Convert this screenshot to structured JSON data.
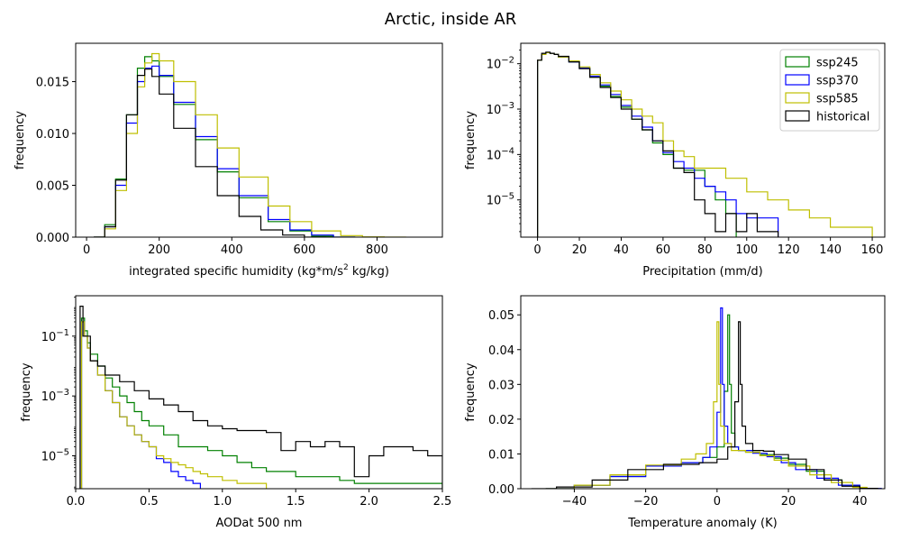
{
  "figure": {
    "title": "Arctic, inside AR"
  },
  "colors": {
    "ssp245": "#008000",
    "ssp370": "#0000ff",
    "ssp585": "#bfbf00",
    "historical": "#000000"
  },
  "chart_data": [
    {
      "id": "ivt",
      "type": "histogram-step",
      "xlabel": "integrated specific humidity (kg*m/s² kg/kg)",
      "xlabel_parts": {
        "pre": "integrated specific humidity (kg*m/s",
        "sup": "2",
        "post": " kg/kg)"
      },
      "ylabel": "frequency",
      "xlim": [
        -30,
        980
      ],
      "ylim": [
        0,
        0.0187
      ],
      "yscale": "linear",
      "xticks": [
        0,
        200,
        400,
        600,
        800
      ],
      "xtick_labels": [
        "0",
        "200",
        "400",
        "600",
        "800"
      ],
      "yticks": [
        0,
        0.005,
        0.01,
        0.015
      ],
      "ytick_labels": [
        "0.000",
        "0.005",
        "0.010",
        "0.015"
      ],
      "series": [
        {
          "name": "ssp245",
          "color": "#008000",
          "x": [
            20,
            50,
            80,
            110,
            140,
            160,
            180,
            200,
            240,
            300,
            360,
            420,
            500,
            560,
            620,
            680
          ],
          "y": [
            0,
            0.0012,
            0.0056,
            0.0118,
            0.0163,
            0.0174,
            0.017,
            0.0155,
            0.0128,
            0.0094,
            0.0063,
            0.0038,
            0.0015,
            0.0006,
            0.0001,
            0
          ]
        },
        {
          "name": "ssp370",
          "color": "#0000ff",
          "x": [
            20,
            50,
            80,
            110,
            140,
            160,
            180,
            200,
            240,
            300,
            360,
            420,
            500,
            560,
            620,
            680
          ],
          "y": [
            0,
            0.001,
            0.005,
            0.011,
            0.015,
            0.0163,
            0.0165,
            0.0156,
            0.013,
            0.0097,
            0.0066,
            0.004,
            0.0017,
            0.0007,
            0.0002,
            0
          ]
        },
        {
          "name": "ssp585",
          "color": "#bfbf00",
          "x": [
            20,
            50,
            80,
            110,
            140,
            160,
            180,
            200,
            240,
            300,
            360,
            420,
            500,
            560,
            620,
            700,
            760,
            820
          ],
          "y": [
            0,
            0.0008,
            0.0045,
            0.01,
            0.0145,
            0.0168,
            0.0177,
            0.017,
            0.015,
            0.0118,
            0.0086,
            0.0058,
            0.003,
            0.0015,
            0.0006,
            0.00015,
            3e-05,
            0
          ]
        },
        {
          "name": "historical",
          "color": "#000000",
          "x": [
            20,
            50,
            80,
            110,
            140,
            160,
            180,
            200,
            240,
            300,
            360,
            420,
            480,
            540,
            600
          ],
          "y": [
            0,
            0.001,
            0.0055,
            0.0118,
            0.0156,
            0.0162,
            0.0155,
            0.0138,
            0.0105,
            0.0068,
            0.004,
            0.002,
            0.0007,
            0.0002,
            0
          ]
        }
      ]
    },
    {
      "id": "precip",
      "type": "histogram-step",
      "xlabel": "Precipitation (mm/d)",
      "ylabel": "frequency",
      "xlim": [
        -8,
        166
      ],
      "ylim_log": [
        -5.82,
        -1.55
      ],
      "yscale": "log",
      "xticks": [
        0,
        20,
        40,
        60,
        80,
        100,
        120,
        140,
        160
      ],
      "xtick_labels": [
        "0",
        "20",
        "40",
        "60",
        "80",
        "100",
        "120",
        "140",
        "160"
      ],
      "yticks_exp": [
        -5,
        -4,
        -3,
        -2
      ],
      "legend": {
        "position": "upper right",
        "entries": [
          "ssp245",
          "ssp370",
          "ssp585",
          "historical"
        ]
      },
      "series": [
        {
          "name": "ssp245",
          "color": "#008000",
          "x": [
            0,
            2,
            4,
            6,
            8,
            10,
            15,
            20,
            25,
            30,
            35,
            40,
            45,
            50,
            55,
            60,
            65,
            70,
            75,
            80,
            85,
            90
          ],
          "y": [
            0.012,
            0.016,
            0.0175,
            0.017,
            0.016,
            0.014,
            0.011,
            0.008,
            0.0052,
            0.0032,
            0.0019,
            0.0011,
            0.0006,
            0.00035,
            0.00018,
            0.0001,
            5e-05,
            4.5e-05,
            4.5e-05,
            2e-05,
            1e-05,
            5e-06
          ]
        },
        {
          "name": "ssp370",
          "color": "#0000ff",
          "x": [
            0,
            2,
            4,
            6,
            8,
            10,
            15,
            20,
            25,
            30,
            35,
            40,
            45,
            50,
            55,
            60,
            65,
            70,
            75,
            80,
            85,
            90,
            95,
            100,
            105,
            110
          ],
          "y": [
            0.012,
            0.016,
            0.0175,
            0.017,
            0.016,
            0.014,
            0.011,
            0.008,
            0.0053,
            0.0034,
            0.0021,
            0.0012,
            0.0007,
            0.0004,
            0.0002,
            0.00011,
            7e-05,
            5e-05,
            3e-05,
            2e-05,
            1.5e-05,
            1e-05,
            5e-06,
            4e-06,
            4e-06,
            4e-06
          ]
        },
        {
          "name": "ssp585",
          "color": "#bfbf00",
          "x": [
            0,
            2,
            4,
            6,
            8,
            10,
            15,
            20,
            25,
            30,
            35,
            40,
            45,
            50,
            55,
            60,
            65,
            70,
            75,
            80,
            90,
            100,
            110,
            120,
            130,
            140,
            150
          ],
          "y": [
            0.012,
            0.016,
            0.0175,
            0.017,
            0.016,
            0.014,
            0.0115,
            0.0085,
            0.0058,
            0.0038,
            0.0025,
            0.0016,
            0.001,
            0.0007,
            0.0005,
            0.0002,
            0.00012,
            9e-05,
            5e-05,
            5e-05,
            3e-05,
            1.5e-05,
            1e-05,
            6e-06,
            4e-06,
            2.5e-06,
            2.5e-06
          ]
        },
        {
          "name": "historical",
          "color": "#000000",
          "x": [
            0,
            2,
            4,
            6,
            8,
            10,
            15,
            20,
            25,
            30,
            35,
            40,
            45,
            50,
            55,
            60,
            65,
            70,
            75,
            80,
            85,
            90,
            95,
            100,
            105,
            110
          ],
          "y": [
            0.012,
            0.017,
            0.018,
            0.017,
            0.016,
            0.0145,
            0.011,
            0.0078,
            0.005,
            0.003,
            0.0018,
            0.001,
            0.0006,
            0.00035,
            0.0002,
            0.00012,
            5e-05,
            4e-05,
            1e-05,
            5e-06,
            2e-06,
            5e-06,
            2e-06,
            5e-06,
            2e-06,
            2e-06
          ]
        }
      ]
    },
    {
      "id": "aod",
      "type": "histogram-step",
      "xlabel": "AODat 500 nm",
      "ylabel": "frequency",
      "xlim": [
        0,
        2.5
      ],
      "ylim_log": [
        -6.1,
        0.35
      ],
      "yscale": "log",
      "xticks": [
        0,
        0.5,
        1.0,
        1.5,
        2.0,
        2.5
      ],
      "xtick_labels": [
        "0.0",
        "0.5",
        "1.0",
        "1.5",
        "2.0",
        "2.5"
      ],
      "yticks_exp": [
        -5,
        -3,
        -1
      ],
      "series": [
        {
          "name": "ssp245",
          "color": "#008000",
          "x": [
            0.04,
            0.06,
            0.08,
            0.1,
            0.15,
            0.2,
            0.25,
            0.3,
            0.35,
            0.4,
            0.45,
            0.5,
            0.6,
            0.7,
            0.8,
            0.9,
            1.0,
            1.1,
            1.2,
            1.3,
            1.4,
            1.5,
            1.6,
            1.7,
            1.8,
            1.9,
            2.0,
            2.1,
            2.2,
            2.3,
            2.4,
            2.5
          ],
          "y": [
            0.4,
            0.15,
            0.06,
            0.025,
            0.01,
            0.004,
            0.002,
            0.001,
            0.0006,
            0.0003,
            0.00015,
            0.0001,
            5e-05,
            2e-05,
            2e-05,
            1.5e-05,
            1e-05,
            6e-06,
            4e-06,
            3e-06,
            3e-06,
            2e-06,
            2e-06,
            2e-06,
            1.5e-06,
            1.2e-06,
            1.2e-06,
            1.2e-06,
            1.2e-06,
            1.2e-06,
            1.2e-06,
            1.2e-06
          ]
        },
        {
          "name": "ssp370",
          "color": "#0000ff",
          "x": [
            0.04,
            0.06,
            0.08,
            0.1,
            0.15,
            0.2,
            0.25,
            0.3,
            0.35,
            0.4,
            0.45,
            0.5,
            0.55,
            0.6,
            0.65,
            0.7,
            0.75,
            0.8
          ],
          "y": [
            0.3,
            0.1,
            0.04,
            0.015,
            0.005,
            0.0015,
            0.0006,
            0.0002,
            0.0001,
            5e-05,
            3e-05,
            2e-05,
            8e-06,
            6e-06,
            3e-06,
            2e-06,
            1.5e-06,
            1.2e-06
          ]
        },
        {
          "name": "ssp585",
          "color": "#bfbf00",
          "x": [
            0.04,
            0.06,
            0.08,
            0.1,
            0.15,
            0.2,
            0.25,
            0.3,
            0.35,
            0.4,
            0.45,
            0.5,
            0.55,
            0.6,
            0.65,
            0.7,
            0.75,
            0.8,
            0.85,
            0.9,
            1.0,
            1.1,
            1.2
          ],
          "y": [
            0.3,
            0.1,
            0.04,
            0.015,
            0.005,
            0.0015,
            0.0006,
            0.0002,
            0.0001,
            5e-05,
            3e-05,
            2e-05,
            1e-05,
            8e-06,
            6e-06,
            5e-06,
            4e-06,
            3e-06,
            2.5e-06,
            2e-06,
            1.5e-06,
            1.2e-06,
            1.2e-06
          ]
        },
        {
          "name": "historical",
          "color": "#000000",
          "x": [
            0.03,
            0.05,
            0.1,
            0.15,
            0.2,
            0.3,
            0.4,
            0.5,
            0.6,
            0.7,
            0.8,
            0.9,
            1.0,
            1.1,
            1.2,
            1.3,
            1.4,
            1.5,
            1.6,
            1.7,
            1.8,
            1.9,
            2.0,
            2.1,
            2.2,
            2.3,
            2.4,
            2.5
          ],
          "y": [
            1.0,
            0.1,
            0.015,
            0.01,
            0.005,
            0.003,
            0.0015,
            0.0008,
            0.0005,
            0.0003,
            0.00015,
            0.0001,
            8e-05,
            7e-05,
            7e-05,
            6e-05,
            1.5e-05,
            3e-05,
            2e-05,
            3e-05,
            2e-05,
            2e-06,
            1e-05,
            2e-05,
            2e-05,
            1.5e-05,
            1e-05,
            1e-05
          ]
        }
      ]
    },
    {
      "id": "tanom",
      "type": "histogram-step",
      "xlabel": "Temperature anomaly (K)",
      "ylabel": "frequency",
      "xlim": [
        -55,
        47
      ],
      "ylim": [
        0,
        0.0555
      ],
      "yscale": "linear",
      "xticks": [
        -40,
        -20,
        0,
        20,
        40
      ],
      "xtick_labels": [
        "−40",
        "−20",
        "0",
        "20",
        "40"
      ],
      "yticks": [
        0,
        0.01,
        0.02,
        0.03,
        0.04,
        0.05
      ],
      "ytick_labels": [
        "0.00",
        "0.01",
        "0.02",
        "0.03",
        "0.04",
        "0.05"
      ],
      "series": [
        {
          "name": "ssp245",
          "color": "#008000",
          "x": [
            -48,
            -40,
            -30,
            -20,
            -10,
            -4,
            0,
            2,
            3,
            3.5,
            4,
            5,
            6,
            8,
            12,
            16,
            20,
            25,
            30,
            35,
            40
          ],
          "y": [
            0,
            0.001,
            0.0035,
            0.0065,
            0.0075,
            0.009,
            0.012,
            0.028,
            0.05,
            0.03,
            0.016,
            0.012,
            0.011,
            0.0105,
            0.0098,
            0.0088,
            0.007,
            0.005,
            0.0025,
            0.0008,
            0.0001
          ]
        },
        {
          "name": "ssp370",
          "color": "#0000ff",
          "x": [
            -48,
            -40,
            -30,
            -20,
            -10,
            -4,
            -2,
            0,
            1,
            1.5,
            2,
            3,
            4,
            6,
            10,
            14,
            18,
            22,
            28,
            34,
            40
          ],
          "y": [
            0,
            0.001,
            0.0035,
            0.0065,
            0.0075,
            0.009,
            0.012,
            0.022,
            0.052,
            0.03,
            0.018,
            0.013,
            0.012,
            0.011,
            0.0102,
            0.0092,
            0.0075,
            0.0055,
            0.003,
            0.001,
            0.0001
          ]
        },
        {
          "name": "ssp585",
          "color": "#bfbf00",
          "x": [
            -48,
            -40,
            -30,
            -20,
            -10,
            -6,
            -3,
            -1,
            0,
            0.5,
            1,
            2,
            4,
            8,
            12,
            16,
            20,
            26,
            32,
            38,
            42
          ],
          "y": [
            0,
            0.001,
            0.004,
            0.0068,
            0.0085,
            0.01,
            0.013,
            0.025,
            0.048,
            0.03,
            0.018,
            0.013,
            0.011,
            0.0105,
            0.0095,
            0.0082,
            0.0065,
            0.004,
            0.0018,
            0.0004,
            0
          ]
        },
        {
          "name": "historical",
          "color": "#000000",
          "x": [
            -52,
            -45,
            -35,
            -25,
            -15,
            -5,
            0,
            3,
            5,
            6,
            6.5,
            7,
            8,
            10,
            13,
            16,
            20,
            25,
            30,
            35,
            40
          ],
          "y": [
            0,
            0.0005,
            0.0025,
            0.0055,
            0.007,
            0.0075,
            0.0085,
            0.012,
            0.025,
            0.048,
            0.03,
            0.018,
            0.013,
            0.011,
            0.0108,
            0.0098,
            0.0085,
            0.0055,
            0.0025,
            0.0007,
            0.0001
          ]
        }
      ]
    }
  ]
}
